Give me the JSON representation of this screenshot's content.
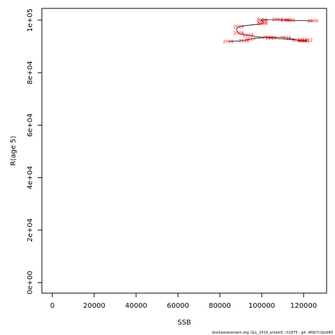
{
  "chart_data": {
    "type": "line",
    "xlabel": "SSB",
    "ylabel": "R(age 5)",
    "xlim": [
      -5000,
      131000
    ],
    "ylim": [
      -4000,
      104500
    ],
    "x_ticks": [
      0,
      20000,
      40000,
      60000,
      80000,
      100000,
      120000
    ],
    "x_tick_labels": [
      "0",
      "20000",
      "40000",
      "60000",
      "80000",
      "100000",
      "120000"
    ],
    "y_ticks": [
      0,
      20000,
      40000,
      60000,
      80000,
      100000
    ],
    "y_tick_labels": [
      "0e+00",
      "2e+04",
      "4e+04",
      "6e+04",
      "8e+04",
      "1e+05"
    ],
    "points": [
      {
        "year": "2000",
        "x": 124500,
        "y": 99700
      },
      {
        "year": "2001",
        "x": 111800,
        "y": 100000
      },
      {
        "year": "2002",
        "x": 113500,
        "y": 100000
      },
      {
        "year": "2003",
        "x": 107500,
        "y": 100200
      },
      {
        "year": "2004",
        "x": 100000,
        "y": 100100
      },
      {
        "year": "2005",
        "x": 100500,
        "y": 99500
      },
      {
        "year": "2006",
        "x": 100200,
        "y": 98700
      },
      {
        "year": "2007",
        "x": 89000,
        "y": 97400
      },
      {
        "year": "2008",
        "x": 89000,
        "y": 95100
      },
      {
        "year": "2009",
        "x": 93500,
        "y": 94200
      },
      {
        "year": "2010",
        "x": 104500,
        "y": 93200
      },
      {
        "year": "2011",
        "x": 119500,
        "y": 92300
      },
      {
        "year": "2012",
        "x": 121800,
        "y": 92400
      },
      {
        "year": "2013",
        "x": 120300,
        "y": 92000
      },
      {
        "year": "2014",
        "x": 117000,
        "y": 92400
      },
      {
        "year": "2015",
        "x": 111500,
        "y": 93300
      },
      {
        "year": "2016",
        "x": 103000,
        "y": 93500
      },
      {
        "year": "2017",
        "x": 94500,
        "y": 92800
      },
      {
        "year": "2018",
        "x": 91500,
        "y": 92200
      },
      {
        "year": "2019",
        "x": 84000,
        "y": 91900
      }
    ],
    "line_color": "#000000",
    "label_color": "#ff0000"
  },
  "footer": "stockassessment.org, GLL_2019_antest5, r11875 , git: df0b7c1bcb83"
}
